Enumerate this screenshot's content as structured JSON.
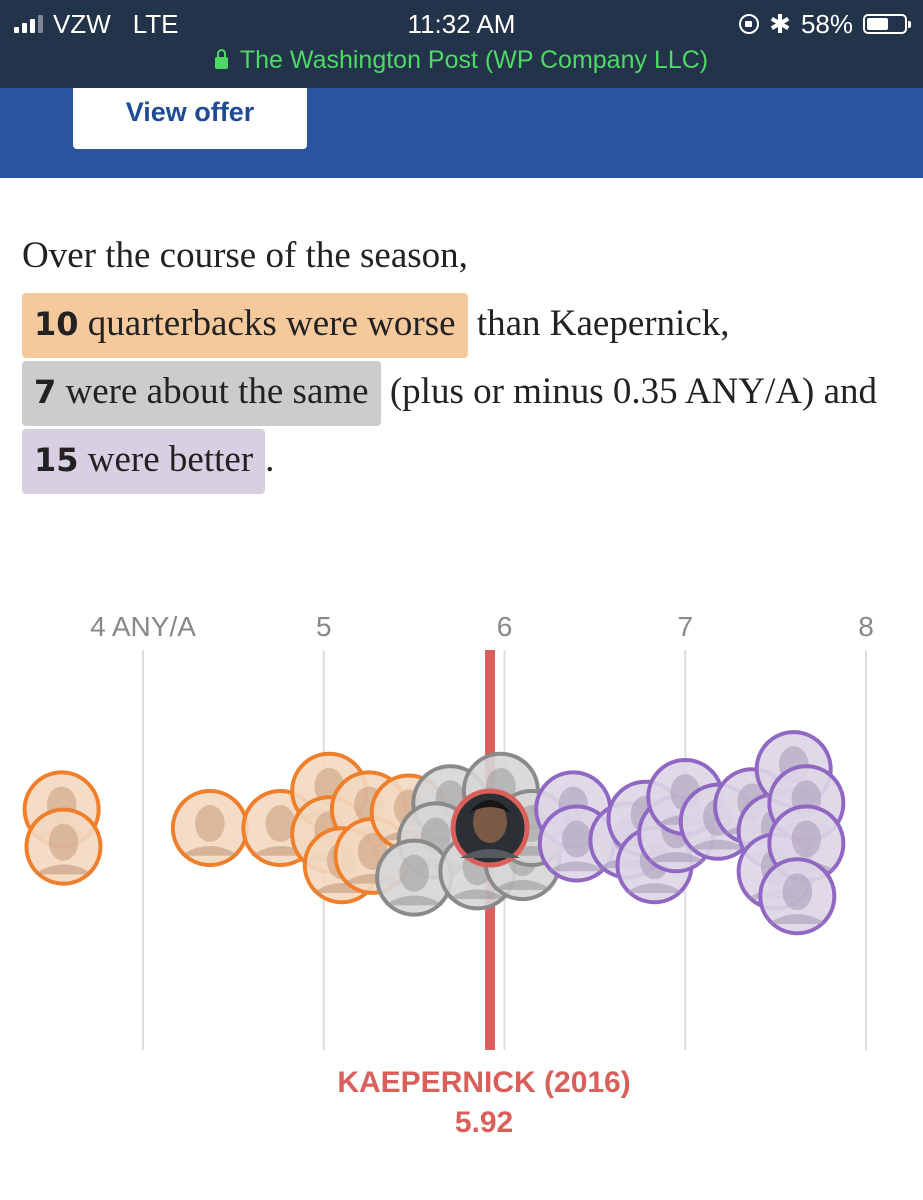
{
  "status_bar": {
    "carrier": "VZW",
    "network": "LTE",
    "time": "11:32 AM",
    "battery": "58%",
    "battery_level": 0.58,
    "url_title": "The Washington Post (WP Company LLC)"
  },
  "banner": {
    "offer_label": "View offer"
  },
  "summary": {
    "intro": "Over the course of the season,",
    "worse_count": "10",
    "worse_label": "quarterbacks were worse",
    "worse_suffix": "than Kaepernick,",
    "same_count": "7",
    "same_label": "were about the same",
    "same_suffix": "(plus or minus 0.35 ANY/A) and",
    "better_count": "15",
    "better_label": "were better",
    "end": "."
  },
  "colors": {
    "worse": "#ef7f2b",
    "same": "#8a8a8a",
    "better": "#9068c4",
    "kaepernick": "#d9605a"
  },
  "chart_data": {
    "type": "scatter",
    "x_ticks": [
      "4 ANY/A",
      "5",
      "6",
      "7",
      "8"
    ],
    "x_tick_values": [
      4,
      5,
      6,
      7,
      8
    ],
    "xlim": [
      4,
      8
    ],
    "reference": {
      "label": "KAEPERNICK (2016)",
      "value": "5.92",
      "x": 5.92
    },
    "series": [
      {
        "group": "worse",
        "color": "#ef7f2b",
        "points": [
          {
            "x": 3.55,
            "row": -0.3
          },
          {
            "x": 3.56,
            "row": 0.3
          },
          {
            "x": 4.37,
            "row": 0
          },
          {
            "x": 4.76,
            "row": 0
          },
          {
            "x": 5.03,
            "row": -0.6
          },
          {
            "x": 5.03,
            "row": 0.1
          },
          {
            "x": 5.25,
            "row": -0.3
          },
          {
            "x": 5.1,
            "row": 0.6
          },
          {
            "x": 5.27,
            "row": 0.45
          },
          {
            "x": 5.47,
            "row": -0.25
          }
        ]
      },
      {
        "group": "same",
        "color": "#8a8a8a",
        "points": [
          {
            "x": 5.7,
            "row": -0.4
          },
          {
            "x": 5.62,
            "row": 0.2
          },
          {
            "x": 5.5,
            "row": 0.8
          },
          {
            "x": 5.85,
            "row": 0.7
          },
          {
            "x": 5.98,
            "row": -0.6
          },
          {
            "x": 6.1,
            "row": 0.55
          },
          {
            "x": 6.15,
            "row": 0
          }
        ]
      },
      {
        "group": "better",
        "color": "#9068c4",
        "points": [
          {
            "x": 6.38,
            "row": -0.3
          },
          {
            "x": 6.4,
            "row": 0.25
          },
          {
            "x": 6.68,
            "row": 0.2
          },
          {
            "x": 6.78,
            "row": -0.15
          },
          {
            "x": 6.83,
            "row": 0.6
          },
          {
            "x": 6.95,
            "row": 0.1
          },
          {
            "x": 7.0,
            "row": -0.5
          },
          {
            "x": 7.18,
            "row": -0.1
          },
          {
            "x": 7.37,
            "row": -0.35
          },
          {
            "x": 7.5,
            "row": 0.05
          },
          {
            "x": 7.5,
            "row": 0.7
          },
          {
            "x": 7.6,
            "row": -0.95
          },
          {
            "x": 7.67,
            "row": -0.4
          },
          {
            "x": 7.67,
            "row": 0.25
          },
          {
            "x": 7.62,
            "row": 1.1
          }
        ]
      }
    ]
  }
}
